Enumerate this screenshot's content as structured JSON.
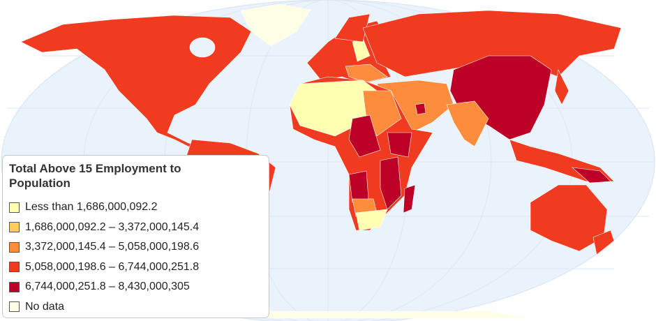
{
  "legend": {
    "title": "Total Above 15 Employment to Population",
    "items": [
      {
        "label": "Less than 1,686,000,092.2",
        "color": "#ffffb2"
      },
      {
        "label": "1,686,000,092.2 – 3,372,000,145.4",
        "color": "#fecc5c"
      },
      {
        "label": "3,372,000,145.4 – 5,058,000,198.6",
        "color": "#fd8d3c"
      },
      {
        "label": "5,058,000,198.6 – 6,744,000,251.8",
        "color": "#f03b20"
      },
      {
        "label": "6,744,000,251.8 – 8,430,000,305",
        "color": "#bd0026"
      },
      {
        "label": "No data",
        "color": "#ffffe5"
      }
    ]
  }
}
